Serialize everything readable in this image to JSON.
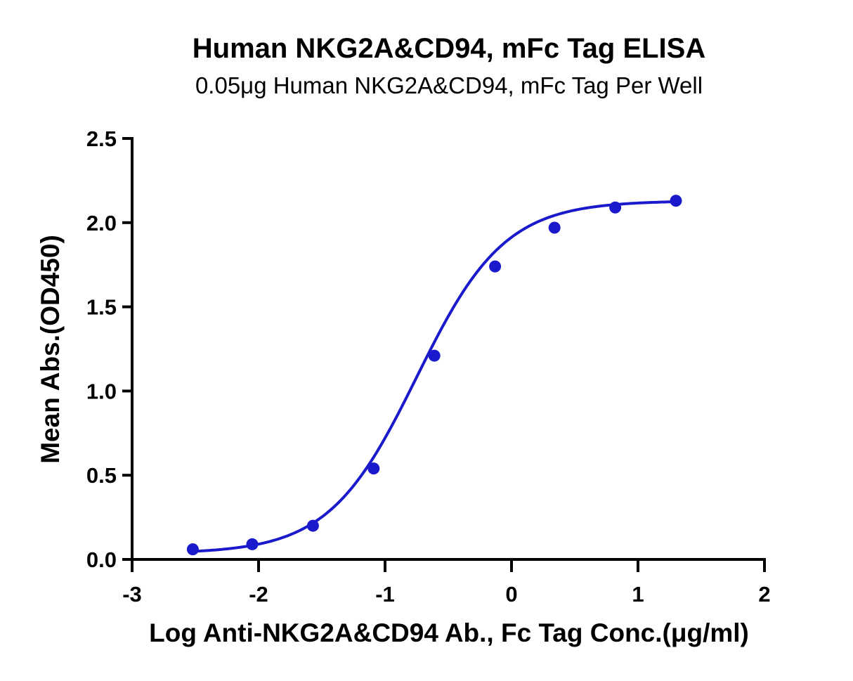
{
  "chart_data": {
    "type": "scatter",
    "title": "Human NKG2A&CD94, mFc Tag ELISA",
    "subtitle": "0.05μg Human NKG2A&CD94, mFc Tag Per Well",
    "xlabel": "Log Anti-NKG2A&CD94 Ab., Fc Tag Conc.(μg/ml)",
    "ylabel": "Mean Abs.(OD450)",
    "xlim": [
      -3,
      2
    ],
    "ylim": [
      0,
      2.5
    ],
    "x_ticks": [
      "-3",
      "-2",
      "-1",
      "0",
      "1",
      "2"
    ],
    "y_ticks": [
      "0.0",
      "0.5",
      "1.0",
      "1.5",
      "2.0",
      "2.5"
    ],
    "grid": false,
    "series": [
      {
        "x": [
          -2.52,
          -2.05,
          -1.57,
          -1.09,
          -0.61,
          -0.13,
          0.34,
          0.82,
          1.3
        ],
        "y": [
          0.06,
          0.09,
          0.2,
          0.54,
          1.21,
          1.74,
          1.97,
          2.09,
          2.13
        ],
        "color": "#1a1acc",
        "fit": "4PL"
      }
    ]
  }
}
